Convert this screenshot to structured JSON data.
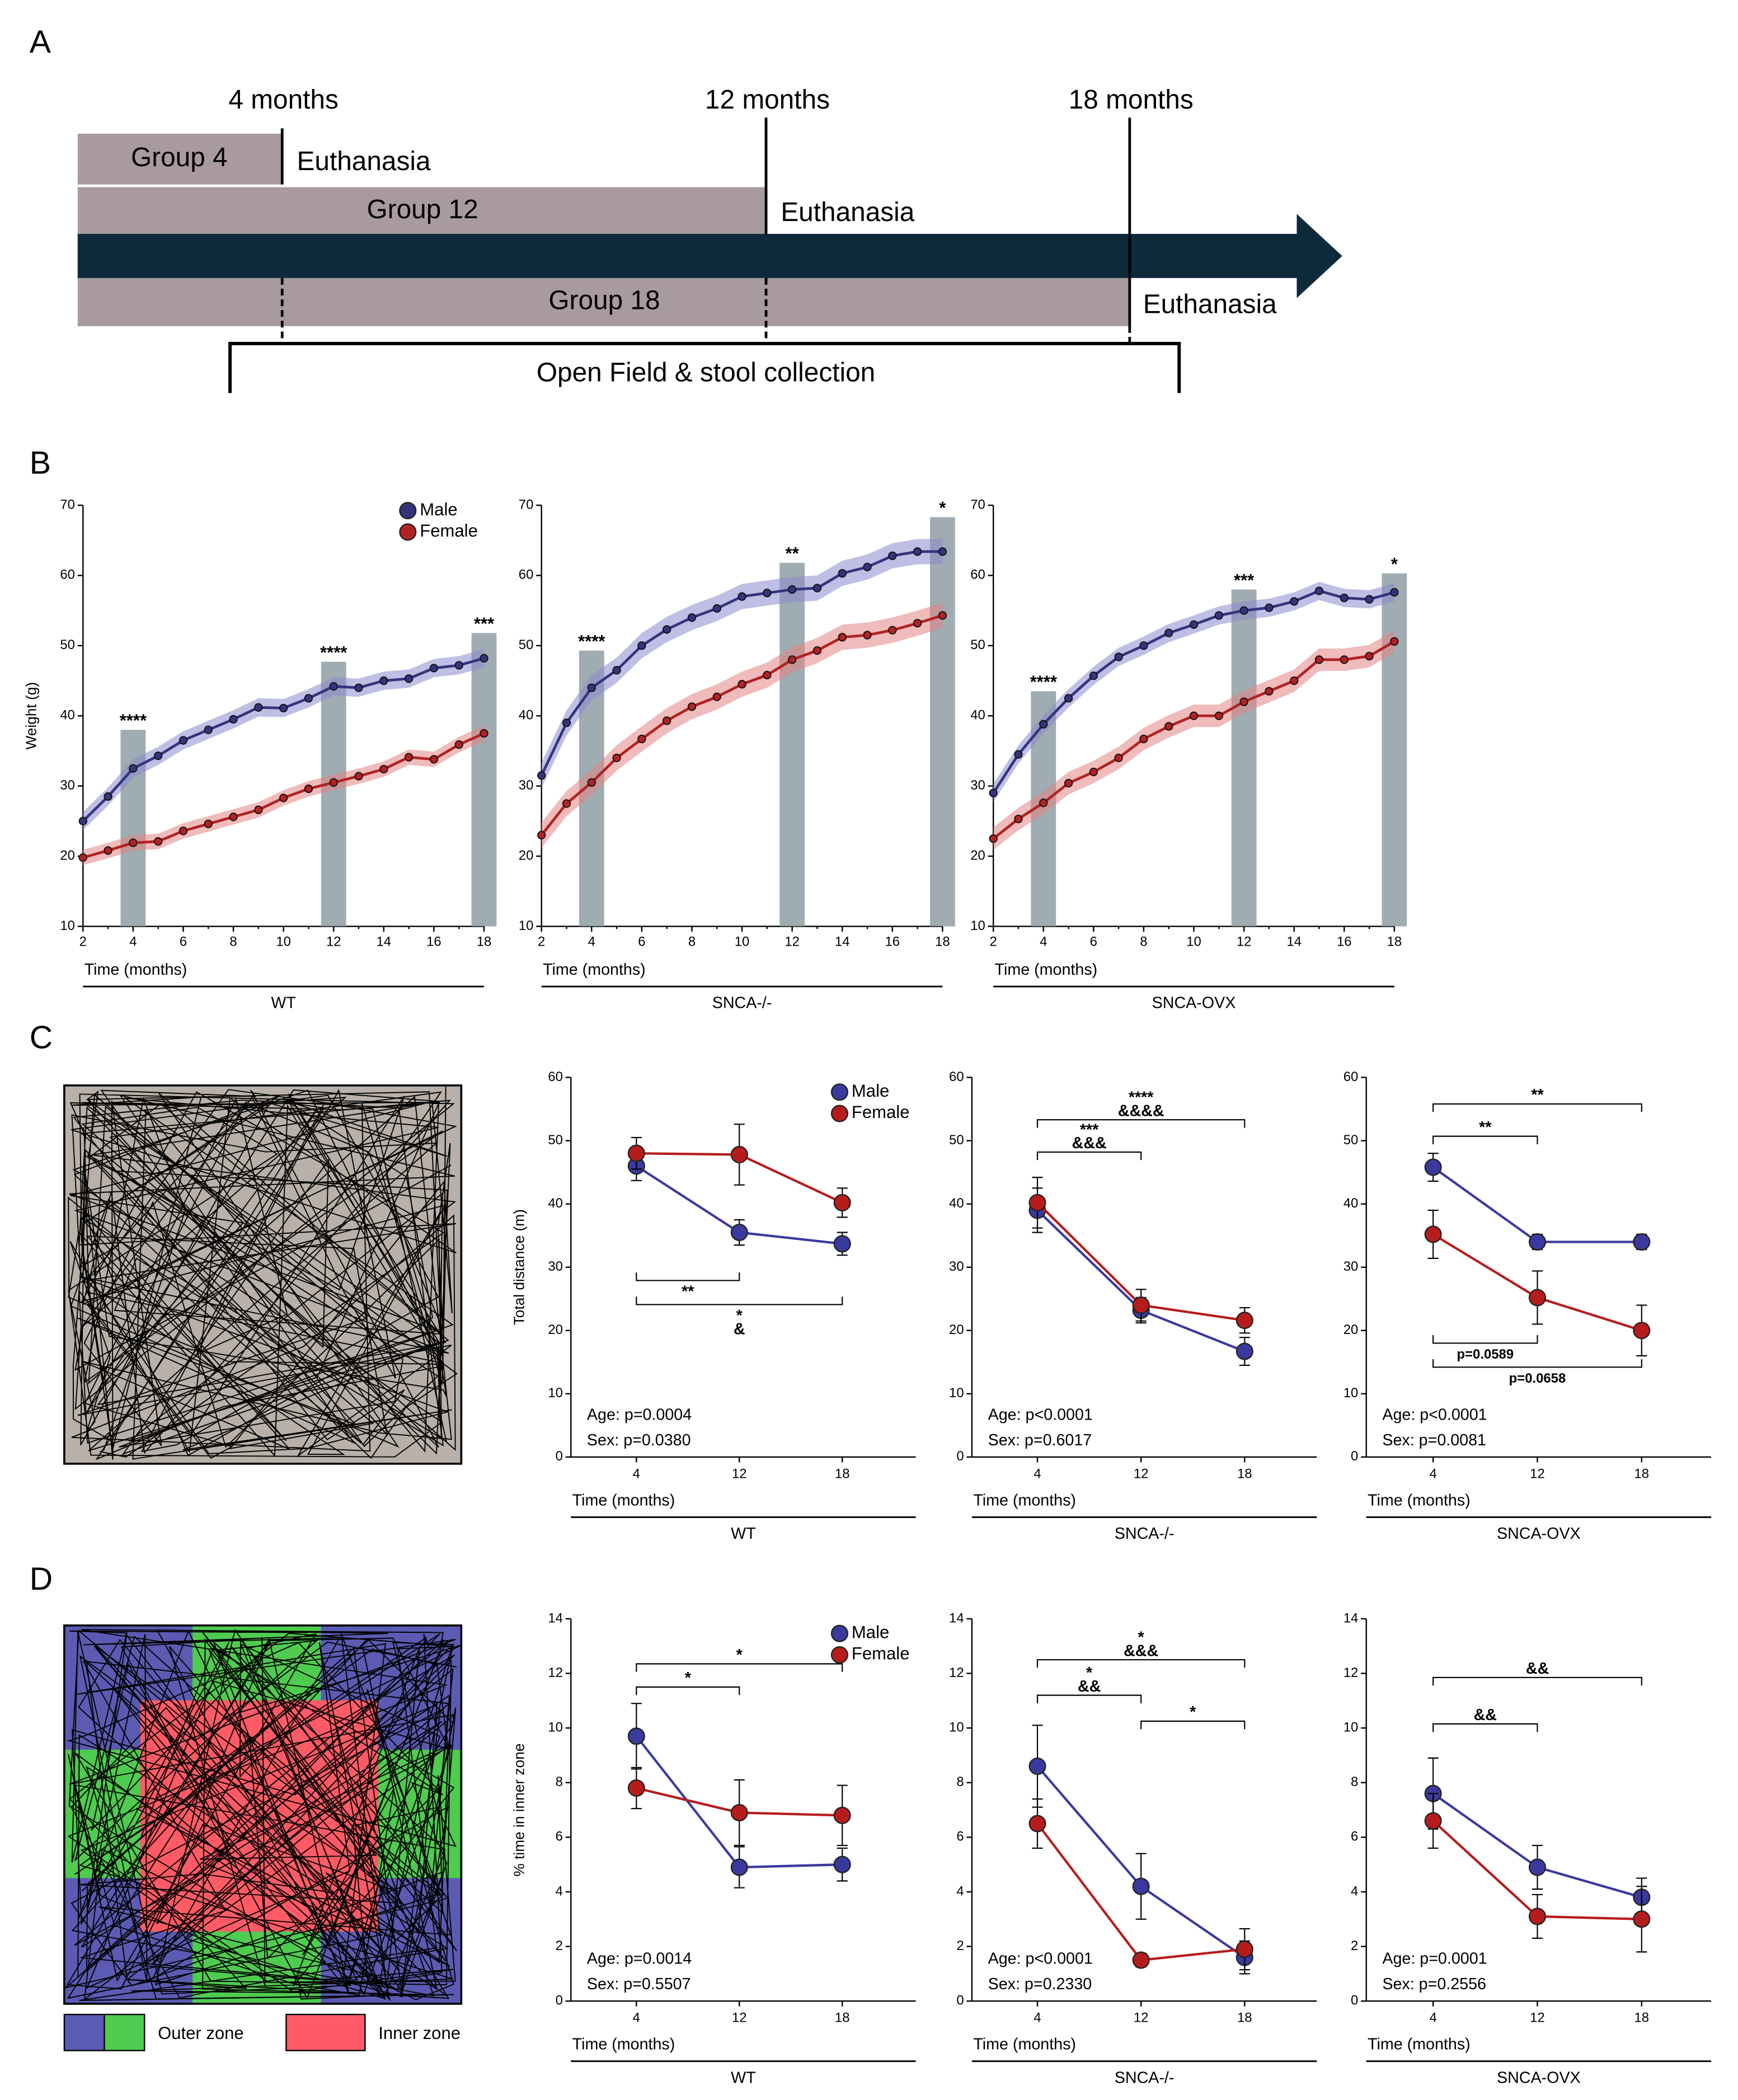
{
  "panel_labels": [
    "A",
    "B",
    "C",
    "D"
  ],
  "timeline": {
    "times": [
      "4 months",
      "12 months",
      "18 months"
    ],
    "groups": [
      "Group 4",
      "Group 12",
      "Group 18"
    ],
    "end": [
      "Euthanasia",
      "Euthanasia",
      "Euthanasia"
    ],
    "window": "Open Field & stool collection"
  },
  "arena": {
    "zones": [
      "Outer zone",
      "Inner zone"
    ]
  },
  "chart_data": [
    {
      "type": "line",
      "ylabel": "Weight (g)",
      "xlabel": "Time (months)",
      "group": "WT",
      "legend": "upper right",
      "x": [
        2,
        3,
        4,
        5,
        6,
        7,
        8,
        9,
        10,
        11,
        12,
        13,
        14,
        15,
        16,
        17,
        18
      ],
      "xlim": [
        2,
        18
      ],
      "xticks": [
        2,
        4,
        6,
        8,
        10,
        12,
        14,
        16,
        18
      ],
      "ylim": [
        10,
        70
      ],
      "yticks": [
        10,
        20,
        30,
        40,
        50,
        60,
        70
      ],
      "series": [
        {
          "name": "Male",
          "color": "#34347e",
          "fill": "#8a8bd0",
          "band": 1.3,
          "values": [
            25,
            28.5,
            32.5,
            34.3,
            36.5,
            38,
            39.5,
            41.2,
            41.1,
            42.5,
            44.2,
            44,
            45,
            45.3,
            46.8,
            47.2,
            48.2
          ]
        },
        {
          "name": "Female",
          "color": "#b22222",
          "fill": "#e48484",
          "band": 1.1,
          "values": [
            19.8,
            20.8,
            21.9,
            22.1,
            23.6,
            24.6,
            25.6,
            26.6,
            28.3,
            29.6,
            30.5,
            31.4,
            32.4,
            34.1,
            33.8,
            35.9,
            37.5
          ]
        }
      ],
      "highlights": [
        {
          "x": 4,
          "value": 38,
          "label": "****"
        },
        {
          "x": 12,
          "value": 47.7,
          "label": "****"
        },
        {
          "x": 18,
          "value": 51.8,
          "label": "***"
        }
      ]
    },
    {
      "type": "line",
      "xlabel": "Time (months)",
      "group": "SNCA-/-",
      "x": [
        2,
        3,
        4,
        5,
        6,
        7,
        8,
        9,
        10,
        11,
        12,
        13,
        14,
        15,
        16,
        17,
        18
      ],
      "xlim": [
        2,
        18
      ],
      "xticks": [
        2,
        4,
        6,
        8,
        10,
        12,
        14,
        16,
        18
      ],
      "ylim": [
        10,
        70
      ],
      "yticks": [
        10,
        20,
        30,
        40,
        50,
        60,
        70
      ],
      "series": [
        {
          "color": "#34347e",
          "fill": "#8a8bd0",
          "band": 1.8,
          "values": [
            31.5,
            39,
            44,
            46.5,
            50,
            52.3,
            54,
            55.3,
            57,
            57.5,
            58,
            58.2,
            60.3,
            61.2,
            62.8,
            63.4,
            63.4
          ]
        },
        {
          "color": "#b22222",
          "fill": "#e48484",
          "band": 1.8,
          "values": [
            23,
            27.5,
            30.5,
            34,
            36.7,
            39.3,
            41.3,
            42.7,
            44.5,
            45.8,
            48,
            49.3,
            51.2,
            51.5,
            52.2,
            53.2,
            54.3
          ]
        }
      ],
      "highlights": [
        {
          "x": 4,
          "value": 49.3,
          "label": "****"
        },
        {
          "x": 12,
          "value": 61.8,
          "label": "**"
        },
        {
          "x": 18,
          "value": 68.3,
          "label": "*"
        }
      ]
    },
    {
      "type": "line",
      "xlabel": "Time (months)",
      "group": "SNCA-OVX",
      "x": [
        2,
        3,
        4,
        5,
        6,
        7,
        8,
        9,
        10,
        11,
        12,
        13,
        14,
        15,
        16,
        17,
        18
      ],
      "xlim": [
        2,
        18
      ],
      "xticks": [
        2,
        4,
        6,
        8,
        10,
        12,
        14,
        16,
        18
      ],
      "ylim": [
        10,
        70
      ],
      "yticks": [
        10,
        20,
        30,
        40,
        50,
        60,
        70
      ],
      "series": [
        {
          "color": "#34347e",
          "fill": "#8a8bd0",
          "band": 1.3,
          "values": [
            29,
            34.5,
            38.8,
            42.5,
            45.7,
            48.4,
            50,
            51.8,
            53,
            54.3,
            55,
            55.4,
            56.3,
            57.8,
            56.8,
            56.6,
            57.6
          ]
        },
        {
          "color": "#b22222",
          "fill": "#e48484",
          "band": 1.6,
          "values": [
            22.5,
            25.3,
            27.6,
            30.4,
            32,
            34,
            36.7,
            38.5,
            40,
            40,
            42,
            43.5,
            45,
            48,
            48,
            48.5,
            50.6
          ]
        }
      ],
      "highlights": [
        {
          "x": 4,
          "value": 43.5,
          "label": "****"
        },
        {
          "x": 12,
          "value": 58,
          "label": "***"
        },
        {
          "x": 18,
          "value": 60.3,
          "label": "*"
        }
      ]
    },
    {
      "type": "line",
      "ylabel": "Total distance (m)",
      "xlabel": "Time (months)",
      "group": "WT",
      "legend": "upper right",
      "categories": [
        "4",
        "12",
        "18"
      ],
      "ylim": [
        0,
        60
      ],
      "yticks": [
        0,
        10,
        20,
        30,
        40,
        50,
        60
      ],
      "series": [
        {
          "name": "Male",
          "color": "#3a3a9e",
          "values": [
            46,
            35.5,
            33.7
          ],
          "errors": [
            2.3,
            2,
            1.8
          ]
        },
        {
          "name": "Female",
          "color": "#b71c1c",
          "values": [
            48,
            47.8,
            40.2
          ],
          "errors": [
            2.5,
            4.8,
            2.3
          ]
        }
      ],
      "brackets": [
        {
          "from": "4",
          "to": "12",
          "y": 27.9,
          "invert": true,
          "labels": [
            {
              "text": "**",
              "color": "#2a2a8a"
            }
          ]
        },
        {
          "from": "4",
          "to": "18",
          "y": 24.1,
          "invert": true,
          "labels": [
            {
              "text": "*",
              "color": "#2a2a8a"
            },
            {
              "text": "&",
              "color": "#b71c1c"
            }
          ]
        }
      ],
      "stats": [
        "Age: p=0.0004",
        "Sex: p=0.0380"
      ]
    },
    {
      "type": "line",
      "xlabel": "Time (months)",
      "group": "SNCA-/-",
      "categories": [
        "4",
        "12",
        "18"
      ],
      "ylim": [
        0,
        60
      ],
      "yticks": [
        0,
        10,
        20,
        30,
        40,
        50,
        60
      ],
      "series": [
        {
          "color": "#3a3a9e",
          "values": [
            39,
            23.2,
            16.7
          ],
          "errors": [
            3.5,
            2,
            2.2
          ]
        },
        {
          "color": "#b71c1c",
          "values": [
            40.2,
            24,
            21.6
          ],
          "errors": [
            4,
            2.5,
            2
          ]
        }
      ],
      "brackets": [
        {
          "from": "4",
          "to": "12",
          "y": 48.2,
          "invert": false,
          "labels": [
            {
              "text": "***",
              "color": "#2a2a8a"
            },
            {
              "text": "&&&",
              "color": "#b71c1c"
            }
          ]
        },
        {
          "from": "4",
          "to": "18",
          "y": 53.3,
          "invert": false,
          "labels": [
            {
              "text": "****",
              "color": "#2a2a8a"
            },
            {
              "text": "&&&&",
              "color": "#b71c1c"
            }
          ]
        }
      ],
      "stats": [
        "Age: p<0.0001",
        "Sex: p=0.6017"
      ]
    },
    {
      "type": "line",
      "xlabel": "Time (months)",
      "group": "SNCA-OVX",
      "categories": [
        "4",
        "12",
        "18"
      ],
      "ylim": [
        0,
        60
      ],
      "yticks": [
        0,
        10,
        20,
        30,
        40,
        50,
        60
      ],
      "series": [
        {
          "color": "#3a3a9e",
          "values": [
            45.8,
            34,
            34
          ],
          "errors": [
            2.2,
            1.2,
            1.2
          ]
        },
        {
          "color": "#b71c1c",
          "values": [
            35.2,
            25.2,
            20
          ],
          "errors": [
            3.8,
            4.2,
            4
          ]
        }
      ],
      "brackets": [
        {
          "from": "4",
          "to": "12",
          "y": 50.7,
          "invert": false,
          "labels": [
            {
              "text": "**",
              "color": "#2a2a8a"
            }
          ]
        },
        {
          "from": "4",
          "to": "18",
          "y": 55.8,
          "invert": false,
          "labels": [
            {
              "text": "**",
              "color": "#2a2a8a"
            }
          ]
        },
        {
          "from": "4",
          "to": "12",
          "y": 18,
          "invert": true,
          "labels": [
            {
              "text": "p=0.0589",
              "color": "#b71c1c"
            }
          ]
        },
        {
          "from": "4",
          "to": "18",
          "y": 14.2,
          "invert": true,
          "labels": [
            {
              "text": "p=0.0658",
              "color": "#b71c1c"
            }
          ]
        }
      ],
      "stats": [
        "Age: p<0.0001",
        "Sex: p=0.0081"
      ]
    },
    {
      "type": "line",
      "ylabel": "% time in inner zone",
      "xlabel": "Time (months)",
      "group": "WT",
      "legend": "upper right",
      "categories": [
        "4",
        "12",
        "18"
      ],
      "ylim": [
        0,
        14
      ],
      "yticks": [
        0,
        2,
        4,
        6,
        8,
        10,
        12,
        14
      ],
      "series": [
        {
          "name": "Male",
          "color": "#3a3a9e",
          "values": [
            9.7,
            4.9,
            5
          ],
          "errors": [
            1.2,
            0.75,
            0.6
          ]
        },
        {
          "name": "Female",
          "color": "#b71c1c",
          "values": [
            7.8,
            6.9,
            6.8
          ],
          "errors": [
            0.75,
            1.2,
            1.1
          ]
        }
      ],
      "brackets": [
        {
          "from": "4",
          "to": "12",
          "y": 11.5,
          "invert": false,
          "labels": [
            {
              "text": "*",
              "color": "#2a2a8a"
            }
          ]
        },
        {
          "from": "4",
          "to": "18",
          "y": 12.35,
          "invert": false,
          "labels": [
            {
              "text": "*",
              "color": "#2a2a8a"
            }
          ]
        }
      ],
      "stats": [
        "Age: p=0.0014",
        "Sex: p=0.5507"
      ]
    },
    {
      "type": "line",
      "xlabel": "Time (months)",
      "group": "SNCA-/-",
      "categories": [
        "4",
        "12",
        "18"
      ],
      "ylim": [
        0,
        14
      ],
      "yticks": [
        0,
        2,
        4,
        6,
        8,
        10,
        12,
        14
      ],
      "series": [
        {
          "color": "#3a3a9e",
          "values": [
            8.6,
            4.2,
            1.6
          ],
          "errors": [
            1.5,
            1.2,
            0.6
          ]
        },
        {
          "color": "#b71c1c",
          "values": [
            6.5,
            1.5,
            1.9
          ],
          "errors": [
            0.9,
            0.25,
            0.75
          ]
        }
      ],
      "brackets": [
        {
          "from": "4",
          "to": "12",
          "y": 11.2,
          "invert": false,
          "labels": [
            {
              "text": "*",
              "color": "#2a2a8a"
            },
            {
              "text": "&&",
              "color": "#b71c1c"
            }
          ]
        },
        {
          "from": "4",
          "to": "18",
          "y": 12.5,
          "invert": false,
          "labels": [
            {
              "text": "*",
              "color": "#2a2a8a"
            },
            {
              "text": "&&&",
              "color": "#b71c1c"
            }
          ]
        },
        {
          "from": "12",
          "to": "18",
          "y": 10.25,
          "invert": false,
          "labels": [
            {
              "text": "*",
              "color": "#2a2a8a"
            }
          ]
        }
      ],
      "stats": [
        "Age: p<0.0001",
        "Sex: p=0.2330"
      ]
    },
    {
      "type": "line",
      "xlabel": "Time (months)",
      "group": "SNCA-OVX",
      "categories": [
        "4",
        "12",
        "18"
      ],
      "ylim": [
        0,
        14
      ],
      "yticks": [
        0,
        2,
        4,
        6,
        8,
        10,
        12,
        14
      ],
      "series": [
        {
          "color": "#3a3a9e",
          "values": [
            7.6,
            4.9,
            3.8
          ],
          "errors": [
            1.3,
            0.8,
            0.7
          ]
        },
        {
          "color": "#b71c1c",
          "values": [
            6.6,
            3.1,
            3
          ],
          "errors": [
            1,
            0.8,
            1.2
          ]
        }
      ],
      "brackets": [
        {
          "from": "4",
          "to": "12",
          "y": 10.15,
          "invert": false,
          "labels": [
            {
              "text": "&&",
              "color": "#b71c1c"
            }
          ]
        },
        {
          "from": "4",
          "to": "18",
          "y": 11.85,
          "invert": false,
          "labels": [
            {
              "text": "&&",
              "color": "#b71c1c"
            }
          ]
        }
      ],
      "stats": [
        "Age: p=0.0001",
        "Sex: p=0.2556"
      ]
    }
  ]
}
